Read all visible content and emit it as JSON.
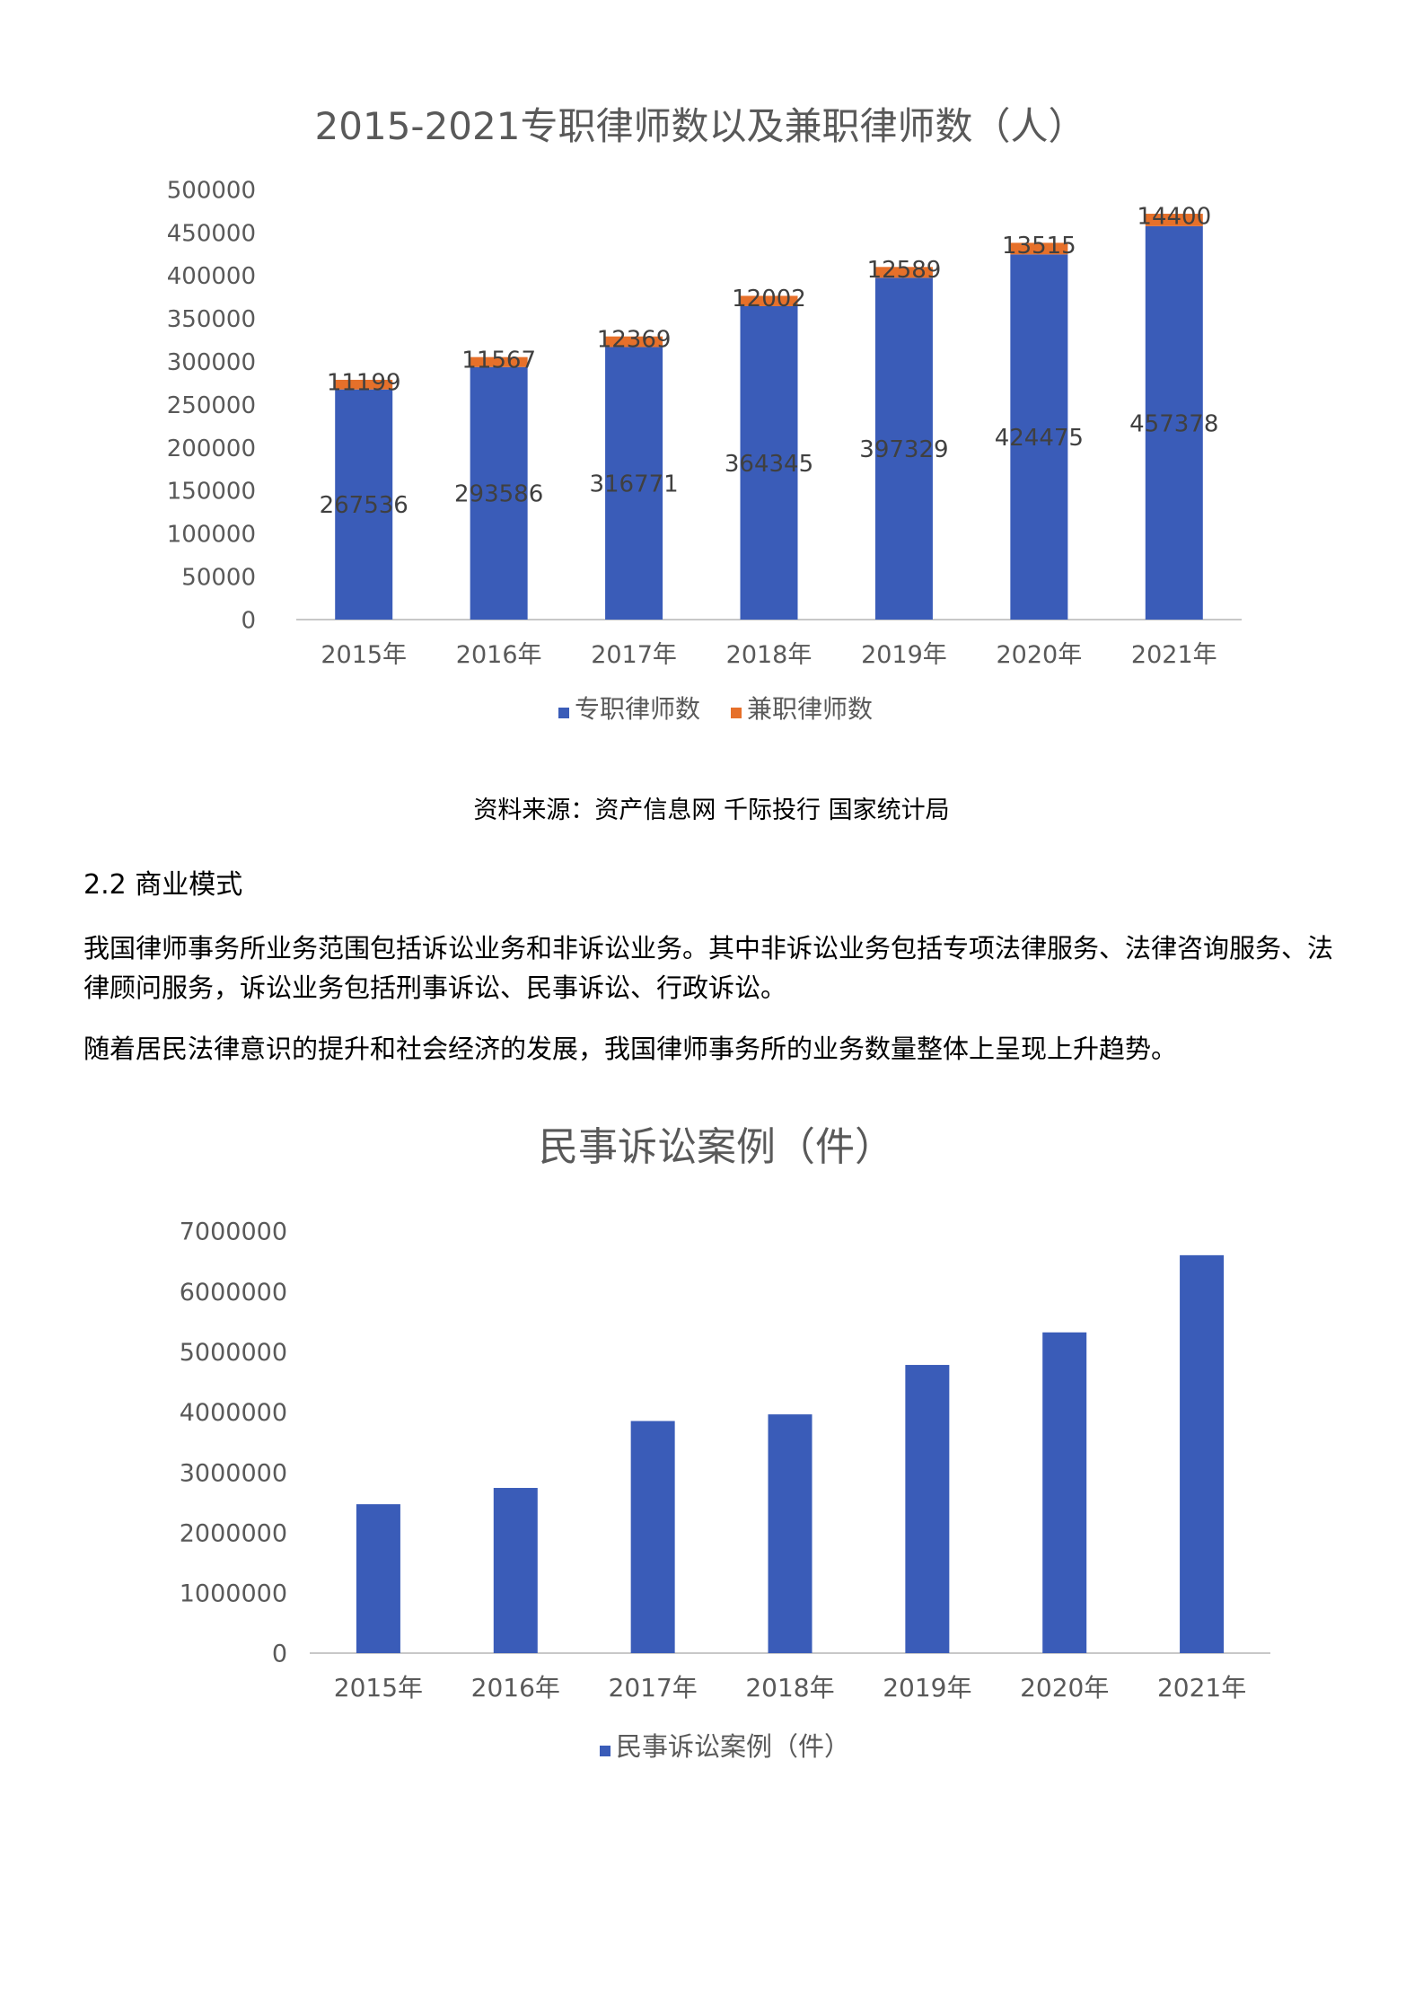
{
  "colors": {
    "full_time": "#3a5cb8",
    "part_time": "#e6702a",
    "axis": "#c8c8c8",
    "text": "#595959"
  },
  "chart_data": [
    {
      "type": "bar",
      "stacked": true,
      "title": "2015-2021专职律师数以及兼职律师数（人）",
      "categories": [
        "2015年",
        "2016年",
        "2017年",
        "2018年",
        "2019年",
        "2020年",
        "2021年"
      ],
      "series": [
        {
          "name": "专职律师数",
          "values": [
            267536,
            293586,
            316771,
            364345,
            397329,
            424475,
            457378
          ]
        },
        {
          "name": "兼职律师数",
          "values": [
            11199,
            11567,
            12369,
            12002,
            12589,
            13515,
            14400
          ]
        }
      ],
      "y_ticks": [
        "0",
        "50000",
        "100000",
        "150000",
        "200000",
        "250000",
        "300000",
        "350000",
        "400000",
        "450000",
        "500000"
      ],
      "ylim": [
        0,
        500000
      ],
      "legend_position": "bottom",
      "grid": false
    },
    {
      "type": "bar",
      "title": "民事诉讼案例（件）",
      "categories": [
        "2015年",
        "2016年",
        "2017年",
        "2018年",
        "2019年",
        "2020年",
        "2021年"
      ],
      "series": [
        {
          "name": "民事诉讼案例（件）",
          "values": [
            2470000,
            2740000,
            3850000,
            3960000,
            4780000,
            5320000,
            6600000
          ]
        }
      ],
      "y_ticks": [
        "0",
        "1000000",
        "2000000",
        "3000000",
        "4000000",
        "5000000",
        "6000000",
        "7000000"
      ],
      "ylim": [
        0,
        7000000
      ],
      "legend_position": "bottom",
      "grid": false
    }
  ],
  "caption": "资料来源：资产信息网 千际投行 国家统计局",
  "section_heading": "2.2 商业模式",
  "paragraphs": [
    "我国律师事务所业务范围包括诉讼业务和非诉讼业务。其中非诉讼业务包括专项法律服务、法律咨询服务、法律顾问服务，诉讼业务包括刑事诉讼、民事诉讼、行政诉讼。",
    "随着居民法律意识的提升和社会经济的发展，我国律师事务所的业务数量整体上呈现上升趋势。"
  ]
}
